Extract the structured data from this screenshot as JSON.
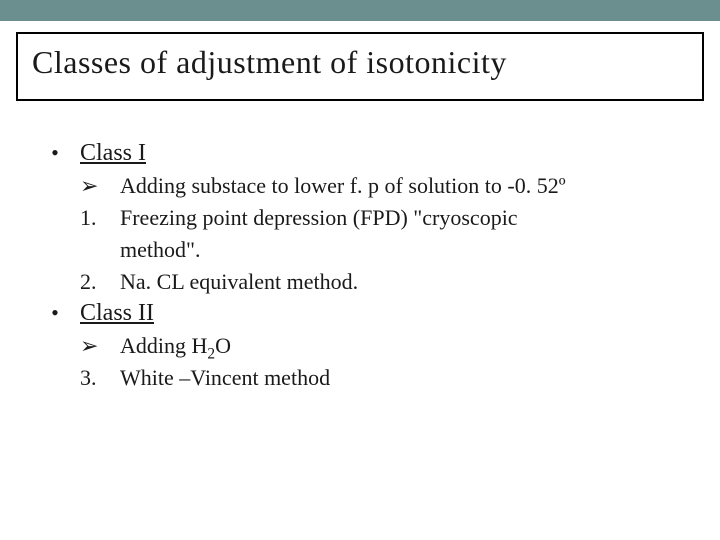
{
  "slide": {
    "top_bar_color": "#6b8e8e",
    "title": "Classes of adjustment of isotonicity",
    "title_fontsize": 32,
    "body_fontsize": 22,
    "text_color": "#1a1a1a",
    "background_color": "#ffffff",
    "class1": {
      "bullet": "•",
      "label": "Class I",
      "arrow_marker": "➢",
      "arrow_text": "Adding substace to lower f. p of solution to -0. 52º",
      "item1_marker": "1.",
      "item1_line1": "Freezing point depression (FPD) \"cryoscopic",
      "item1_line2": "method\".",
      "item2_marker": "2.",
      "item2_text": "Na. CL equivalent method."
    },
    "class2": {
      "bullet": "•",
      "label": "Class II",
      "arrow_marker": "➢",
      "arrow_prefix": "Adding H",
      "arrow_sub": "2",
      "arrow_suffix": "O",
      "item3_marker": "3.",
      "item3_text": "White –Vincent method"
    }
  }
}
